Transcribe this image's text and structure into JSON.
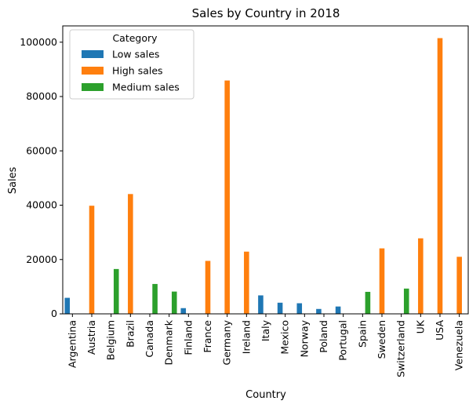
{
  "chart_data": {
    "type": "bar",
    "title": "Sales by Country in 2018",
    "xlabel": "Country",
    "ylabel": "Sales",
    "ylim": [
      0,
      106000
    ],
    "yticks": [
      0,
      20000,
      40000,
      60000,
      80000,
      100000
    ],
    "categories": [
      "Argentina",
      "Austria",
      "Belgium",
      "Brazil",
      "Canada",
      "Denmark",
      "Finland",
      "France",
      "Germany",
      "Ireland",
      "Italy",
      "Mexico",
      "Norway",
      "Poland",
      "Portugal",
      "Spain",
      "Sweden",
      "Switzerland",
      "UK",
      "USA",
      "Venezuela"
    ],
    "legend": {
      "title": "Category",
      "position": "top-left"
    },
    "grid": false,
    "series": [
      {
        "name": "Low sales",
        "color": "#1f77b4",
        "values": [
          5900,
          null,
          null,
          null,
          null,
          null,
          2100,
          null,
          null,
          null,
          6800,
          4100,
          3900,
          1800,
          2700,
          null,
          null,
          null,
          null,
          null,
          null
        ]
      },
      {
        "name": "High sales",
        "color": "#ff7f0e",
        "values": [
          null,
          39800,
          null,
          44100,
          null,
          null,
          null,
          19500,
          85900,
          22900,
          null,
          null,
          null,
          null,
          null,
          null,
          24100,
          null,
          27800,
          101500,
          21000
        ]
      },
      {
        "name": "Medium sales",
        "color": "#2ca02c",
        "values": [
          null,
          null,
          16500,
          null,
          11000,
          8200,
          null,
          null,
          null,
          null,
          null,
          null,
          null,
          null,
          null,
          8100,
          null,
          9300,
          null,
          null,
          null
        ]
      }
    ]
  }
}
